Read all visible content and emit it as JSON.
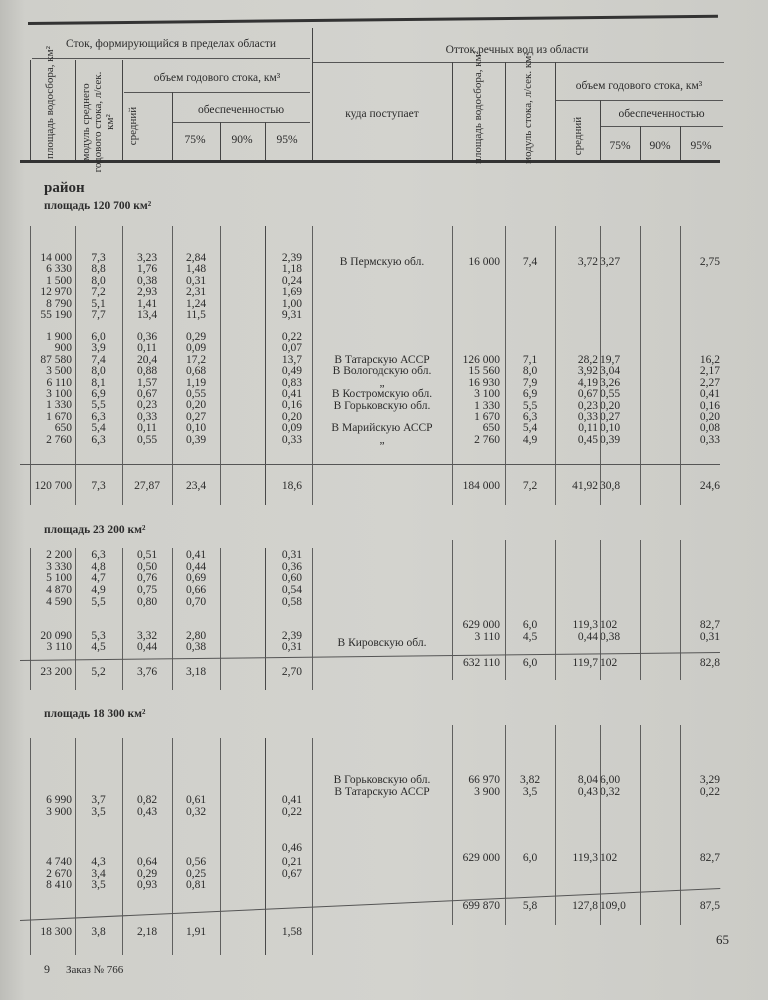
{
  "header": {
    "left_group": "Сток, формирующийся в пределах области",
    "right_group": "Отток речных вод из области",
    "col_area": "площадь водосбора, км²",
    "col_module_left": "модуль среднего годового стока, л/сек. км²",
    "col_volume": "объем годового стока, км³",
    "col_mean": "средний",
    "col_prob": "обеспеченностью",
    "p75": "75%",
    "p90": "90%",
    "p95": "95%",
    "col_dest": "куда поступает",
    "col_area_right": "площадь водосбора, км²",
    "col_module_right": "модуль стока, л/сек. км²"
  },
  "region_label": "район",
  "sections": [
    {
      "title": "площадь 120 700 км²",
      "left_rows": [
        [
          "14 000",
          "7,3",
          "3,23",
          "2,84",
          "",
          "2,39"
        ],
        [
          "6 330",
          "8,8",
          "1,76",
          "1,48",
          "",
          "1,18"
        ],
        [
          "1 500",
          "8,0",
          "0,38",
          "0,31",
          "",
          "0,24"
        ],
        [
          "12 970",
          "7,2",
          "2,93",
          "2,31",
          "",
          "1,69"
        ],
        [
          "8 790",
          "5,1",
          "1,41",
          "1,24",
          "",
          "1,00"
        ],
        [
          "55 190",
          "7,7",
          "13,4",
          "11,5",
          "",
          "9,31"
        ],
        [
          "1 900",
          "6,0",
          "0,36",
          "0,29",
          "",
          "0,22"
        ],
        [
          "900",
          "3,9",
          "0,11",
          "0,09",
          "",
          "0,07"
        ],
        [
          "87 580",
          "7,4",
          "20,4",
          "17,2",
          "",
          "13,7"
        ],
        [
          "3 500",
          "8,0",
          "0,88",
          "0,68",
          "",
          "0,49"
        ],
        [
          "6 110",
          "8,1",
          "1,57",
          "1,19",
          "",
          "0,83"
        ],
        [
          "3 100",
          "6,9",
          "0,67",
          "0,55",
          "",
          "0,41"
        ],
        [
          "1 330",
          "5,5",
          "0,23",
          "0,20",
          "",
          "0,16"
        ],
        [
          "1 670",
          "6,3",
          "0,33",
          "0,27",
          "",
          "0,20"
        ],
        [
          "650",
          "5,4",
          "0,11",
          "0,10",
          "",
          "0,09"
        ],
        [
          "2 760",
          "6,3",
          "0,55",
          "0,39",
          "",
          "0,33"
        ]
      ],
      "right_rows": [
        [
          "В Пермскую обл.",
          "16 000",
          "7,4",
          "3,72",
          "3,27",
          "",
          "2,75"
        ],
        [
          "В Татарскую АССР",
          "126 000",
          "7,1",
          "28,2",
          "19,7",
          "",
          "16,2"
        ],
        [
          "В Вологодскую обл.",
          "15 560",
          "8,0",
          "3,92",
          "3,04",
          "",
          "2,17"
        ],
        [
          "„",
          "16 930",
          "7,9",
          "4,19",
          "3,26",
          "",
          "2,27"
        ],
        [
          "В Костромскую обл.",
          "3 100",
          "6,9",
          "0,67",
          "0,55",
          "",
          "0,41"
        ],
        [
          "В Горьковскую обл.",
          "1 330",
          "5,5",
          "0,23",
          "0,20",
          "",
          "0,16"
        ],
        [
          "",
          "1 670",
          "6,3",
          "0,33",
          "0,27",
          "",
          "0,20"
        ],
        [
          "В Марийскую АССР",
          "650",
          "5,4",
          "0,11",
          "0,10",
          "",
          "0,08"
        ],
        [
          "„",
          "2 760",
          "4,9",
          "0,45",
          "0,39",
          "",
          "0,33"
        ]
      ],
      "left_total": [
        "120 700",
        "7,3",
        "27,87",
        "23,4",
        "",
        "18,6"
      ],
      "right_total": [
        "",
        "184 000",
        "7,2",
        "41,92",
        "30,8",
        "",
        "24,6"
      ]
    },
    {
      "title": "площадь 23 200 км²",
      "left_rows": [
        [
          "2 200",
          "6,3",
          "0,51",
          "0,41",
          "",
          "0,31"
        ],
        [
          "3 330",
          "4,8",
          "0,50",
          "0,44",
          "",
          "0,36"
        ],
        [
          "5 100",
          "4,7",
          "0,76",
          "0,69",
          "",
          "0,60"
        ],
        [
          "4 870",
          "4,9",
          "0,75",
          "0,66",
          "",
          "0,54"
        ],
        [
          "4 590",
          "5,5",
          "0,80",
          "0,70",
          "",
          "0,58"
        ],
        [
          "20 090",
          "5,3",
          "3,32",
          "2,80",
          "",
          "2,39"
        ],
        [
          "3 110",
          "4,5",
          "0,44",
          "0,38",
          "",
          "0,31"
        ]
      ],
      "right_rows": [
        [
          "",
          "629 000",
          "6,0",
          "119,3",
          "102",
          "",
          "82,7"
        ],
        [
          "В Кировскую обл.",
          "3 110",
          "4,5",
          "0,44",
          "0,38",
          "",
          "0,31"
        ]
      ],
      "left_total": [
        "23 200",
        "5,2",
        "3,76",
        "3,18",
        "",
        "2,70"
      ],
      "right_total": [
        "",
        "632 110",
        "6,0",
        "119,7",
        "102",
        "",
        "82,8"
      ]
    },
    {
      "title": "площадь 18 300 км²",
      "left_rows": [
        [
          "6 990",
          "3,7",
          "0,82",
          "0,61",
          "",
          "0,41"
        ],
        [
          "3 900",
          "3,5",
          "0,43",
          "0,32",
          "",
          "0,22"
        ],
        [
          "",
          "",
          "",
          "",
          "",
          "0,46"
        ],
        [
          "4 740",
          "4,3",
          "0,64",
          "0,56",
          "",
          "0,21"
        ],
        [
          "2 670",
          "3,4",
          "0,29",
          "0,25",
          "",
          "0,67"
        ],
        [
          "8 410",
          "3,5",
          "0,93",
          "0,81",
          "",
          ""
        ]
      ],
      "right_rows": [
        [
          "В Горьковскую обл.",
          "66 970",
          "3,82",
          "8,04",
          "6,00",
          "",
          "3,29"
        ],
        [
          "В Татарскую АССР",
          "3 900",
          "3,5",
          "0,43",
          "0,32",
          "",
          "0,22"
        ],
        [
          "",
          "629 000",
          "6,0",
          "119,3",
          "102",
          "",
          "82,7"
        ]
      ],
      "left_total": [
        "18 300",
        "3,8",
        "2,18",
        "1,91",
        "",
        "1,58"
      ],
      "right_total": [
        "",
        "699 870",
        "5,8",
        "127,8",
        "109,0",
        "",
        "87,5"
      ]
    }
  ],
  "footer": {
    "signature_number": "9",
    "order_label": "Заказ № 766",
    "page_number": "65"
  }
}
